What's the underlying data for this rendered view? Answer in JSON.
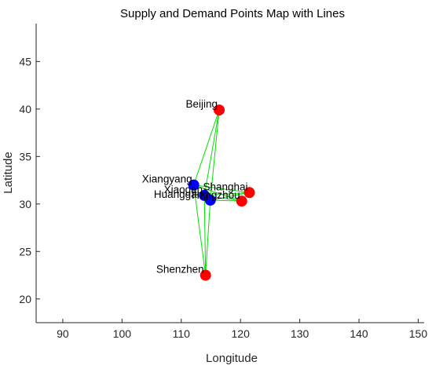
{
  "chart_data": {
    "type": "scatter",
    "title": "Supply and Demand Points Map with Lines",
    "xlabel": "Longitude",
    "ylabel": "Latitude",
    "xlim": [
      85.5,
      151
    ],
    "ylim": [
      17.5,
      49
    ],
    "xticks": [
      90,
      100,
      110,
      120,
      130,
      140,
      150
    ],
    "yticks": [
      20,
      25,
      30,
      35,
      40,
      45
    ],
    "grid": false,
    "colors": {
      "demand": "#ff0000",
      "supply": "#0000ff",
      "line": "#00e000",
      "axis": "#262626"
    },
    "demand_points": [
      {
        "name": "Beijing",
        "lon": 116.4,
        "lat": 39.9
      },
      {
        "name": "Shanghai",
        "lon": 121.5,
        "lat": 31.2
      },
      {
        "name": "Shenzhen",
        "lon": 114.1,
        "lat": 22.5
      },
      {
        "name": "Hangzhou",
        "lon": 120.2,
        "lat": 30.3
      }
    ],
    "supply_points": [
      {
        "name": "Xiangyang",
        "lon": 112.1,
        "lat": 32.0
      },
      {
        "name": "Xiaogan",
        "lon": 113.9,
        "lat": 30.9
      },
      {
        "name": "Huanggang",
        "lon": 114.9,
        "lat": 30.4
      }
    ]
  }
}
